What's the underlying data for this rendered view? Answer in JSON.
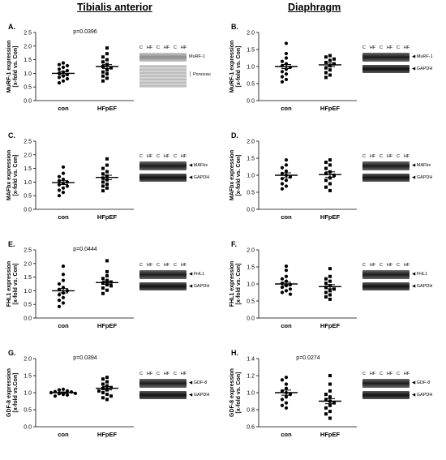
{
  "titles": {
    "left": "Tibialis anterior",
    "right": "Diaphragm"
  },
  "lanes": [
    "C",
    "HF",
    "C",
    "HF",
    "C",
    "HF"
  ],
  "panels": [
    {
      "label": "A.",
      "ylabel": "MuRF-1 expression",
      "ylabel2": "[x-fold vs. Con]",
      "ylim": [
        0,
        2.5
      ],
      "ticks": [
        "0.0",
        "0.5",
        "1.0",
        "1.5",
        "2.0",
        "2.5"
      ],
      "pval": "p=0.0396",
      "categories": [
        "con",
        "HFpEF"
      ],
      "means": [
        1.0,
        1.25
      ],
      "sem": [
        0.06,
        0.07
      ],
      "con": [
        1.38,
        1.32,
        1.28,
        1.22,
        1.15,
        1.1,
        1.05,
        1.0,
        0.95,
        0.9,
        0.85,
        0.8,
        0.72,
        0.65
      ],
      "hfpef": [
        1.93,
        1.72,
        1.6,
        1.5,
        1.42,
        1.33,
        1.25,
        1.2,
        1.12,
        1.05,
        0.98,
        0.9,
        0.82,
        0.72
      ],
      "blot": {
        "band1": "MuRF-1",
        "band2": "Ponceau",
        "style": "ponceau",
        "arrow1": false
      }
    },
    {
      "label": "B.",
      "ylabel": "MuRF-1 expression",
      "ylabel2": "[x-fold vs. Con]",
      "ylim": [
        0,
        2.0
      ],
      "ticks": [
        "0.0",
        "0.5",
        "1.0",
        "1.5",
        "2.0"
      ],
      "pval": "",
      "categories": [
        "con",
        "HFpEF"
      ],
      "means": [
        1.0,
        1.05
      ],
      "sem": [
        0.06,
        0.05
      ],
      "con": [
        1.68,
        1.38,
        1.25,
        1.15,
        1.08,
        1.02,
        0.98,
        0.92,
        0.85,
        0.78,
        0.7,
        0.62,
        0.55
      ],
      "hfpef": [
        1.32,
        1.28,
        1.22,
        1.18,
        1.12,
        1.08,
        1.02,
        0.96,
        0.9,
        0.82,
        0.75,
        0.68
      ],
      "blot": {
        "band1": "MuRF-1",
        "band2": "GAPDH",
        "style": "gapdh",
        "arrow1": true
      }
    },
    {
      "label": "C.",
      "ylabel": "MAFbx expression",
      "ylabel2": "[x-fold vs. Con]",
      "ylim": [
        0,
        2.5
      ],
      "ticks": [
        "0.0",
        "0.5",
        "1.0",
        "1.5",
        "2.0",
        "2.5"
      ],
      "pval": "",
      "categories": [
        "con",
        "HFpEF"
      ],
      "means": [
        0.98,
        1.17
      ],
      "sem": [
        0.07,
        0.08
      ],
      "con": [
        1.55,
        1.32,
        1.2,
        1.1,
        1.05,
        1.0,
        0.95,
        0.9,
        0.85,
        0.78,
        0.7,
        0.62,
        0.5
      ],
      "hfpef": [
        1.85,
        1.62,
        1.5,
        1.38,
        1.3,
        1.22,
        1.15,
        1.08,
        1.0,
        0.92,
        0.85,
        0.78,
        0.68
      ],
      "blot": {
        "band1": "MAFbx",
        "band2": "GAPDH",
        "style": "gapdh",
        "arrow1": true
      }
    },
    {
      "label": "D.",
      "ylabel": "MAFbx expression",
      "ylabel2": "[x-fold vs. Con]",
      "ylim": [
        0,
        2.0
      ],
      "ticks": [
        "0.0",
        "0.5",
        "1.0",
        "1.5",
        "2.0"
      ],
      "pval": "",
      "categories": [
        "con",
        "HFpEF"
      ],
      "means": [
        1.0,
        1.02
      ],
      "sem": [
        0.07,
        0.08
      ],
      "con": [
        1.45,
        1.3,
        1.22,
        1.12,
        1.05,
        1.0,
        0.95,
        0.9,
        0.85,
        0.75,
        0.68,
        0.6
      ],
      "hfpef": [
        1.45,
        1.38,
        1.3,
        1.2,
        1.1,
        1.05,
        1.0,
        0.92,
        0.85,
        0.75,
        0.65,
        0.55
      ],
      "blot": {
        "band1": "MAFbx",
        "band2": "GAPDH",
        "style": "gapdh",
        "arrow1": true
      }
    },
    {
      "label": "E.",
      "ylabel": "FHL1 expression",
      "ylabel2": "[x-fold vs. Con]",
      "ylim": [
        0,
        2.5
      ],
      "ticks": [
        "0.0",
        "0.5",
        "1.0",
        "1.5",
        "2.0",
        "2.5"
      ],
      "pval": "p=0.0444",
      "categories": [
        "con",
        "HFpEF"
      ],
      "means": [
        1.0,
        1.3
      ],
      "sem": [
        0.08,
        0.06
      ],
      "con": [
        1.9,
        1.6,
        1.38,
        1.25,
        1.12,
        1.05,
        1.0,
        0.92,
        0.85,
        0.75,
        0.65,
        0.55,
        0.42
      ],
      "hfpef": [
        2.1,
        1.7,
        1.55,
        1.45,
        1.38,
        1.32,
        1.28,
        1.22,
        1.18,
        1.1,
        1.02,
        0.9
      ],
      "blot": {
        "band1": "FHL1",
        "band2": "GAPDH",
        "style": "gapdh",
        "arrow1": true
      }
    },
    {
      "label": "F.",
      "ylabel": "FHL1 expression",
      "ylabel2": "[x-fold vs. Con]",
      "ylim": [
        0,
        2.0
      ],
      "ticks": [
        "0.0",
        "0.5",
        "1.0",
        "1.5",
        "2.0"
      ],
      "pval": "",
      "categories": [
        "con",
        "HFpEF"
      ],
      "means": [
        1.0,
        0.92
      ],
      "sem": [
        0.05,
        0.06
      ],
      "con": [
        1.52,
        1.4,
        1.22,
        1.15,
        1.08,
        1.02,
        0.98,
        0.95,
        0.9,
        0.85,
        0.8,
        0.75,
        0.7
      ],
      "hfpef": [
        1.45,
        1.22,
        1.15,
        1.08,
        1.02,
        0.95,
        0.9,
        0.85,
        0.8,
        0.75,
        0.68,
        0.62,
        0.55
      ],
      "blot": {
        "band1": "FHL1",
        "band2": "GAPDH",
        "style": "gapdh",
        "arrow1": true
      }
    },
    {
      "label": "G.",
      "ylabel": "GDF-8 expression",
      "ylabel2": "[x-fold vs.Con]",
      "ylim": [
        0,
        2.0
      ],
      "ticks": [
        "0.0",
        "0.5",
        "1.0",
        "1.5",
        "2.0"
      ],
      "pval": "p=0.0394",
      "categories": [
        "con",
        "HFpEF"
      ],
      "means": [
        1.0,
        1.13
      ],
      "sem": [
        0.02,
        0.05
      ],
      "con": [
        1.1,
        1.08,
        1.05,
        1.03,
        1.02,
        1.0,
        0.99,
        0.98,
        0.97,
        0.95,
        0.93,
        0.9
      ],
      "hfpef": [
        1.45,
        1.4,
        1.32,
        1.25,
        1.2,
        1.15,
        1.12,
        1.08,
        1.05,
        1.0,
        0.95,
        0.9,
        0.85,
        0.8
      ],
      "blot": {
        "band1": "GDF-8",
        "band2": "GAPDH",
        "style": "gapdh",
        "arrow1": true
      }
    },
    {
      "label": "H.",
      "ylabel": "GDF-8 expression",
      "ylabel2": "[x-fold vs. Con]",
      "ylim": [
        0.6,
        1.4
      ],
      "ticks": [
        "0.6",
        "0.8",
        "1.0",
        "1.2",
        "1.4"
      ],
      "pval": "p=0.0274",
      "categories": [
        "con",
        "HFpEF"
      ],
      "means": [
        1.0,
        0.9
      ],
      "sem": [
        0.03,
        0.03
      ],
      "con": [
        1.18,
        1.15,
        1.1,
        1.05,
        1.02,
        1.0,
        0.98,
        0.95,
        0.92,
        0.88,
        0.85,
        0.82
      ],
      "hfpef": [
        1.2,
        1.1,
        1.02,
        0.98,
        0.95,
        0.92,
        0.9,
        0.88,
        0.85,
        0.82,
        0.78,
        0.75,
        0.7
      ],
      "blot": {
        "band1": "GDF-8",
        "band2": "GAPDH",
        "style": "gapdh",
        "arrow1": true
      }
    }
  ]
}
